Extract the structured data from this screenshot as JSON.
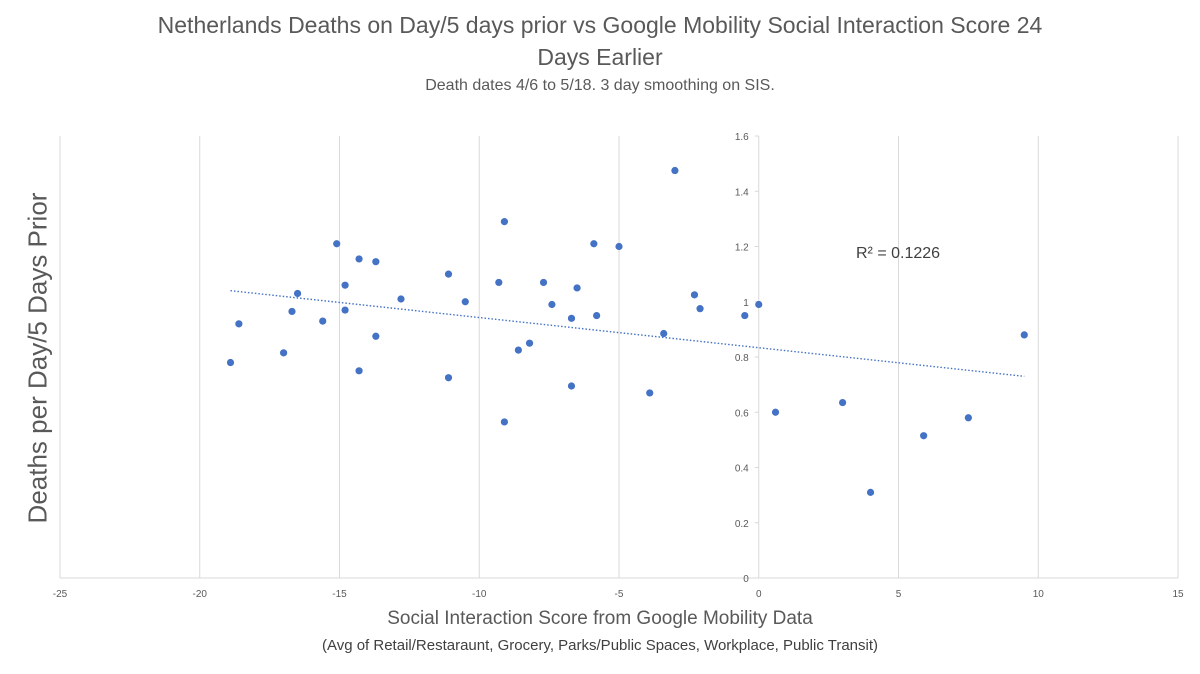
{
  "chart_data": {
    "type": "scatter",
    "title": "Netherlands Deaths on Day/5 days prior vs Google Mobility Social Interaction Score 24",
    "title_line2": "Days Earlier",
    "subtitle": "Death dates 4/6 to 5/18.  3 day smoothing on SIS.",
    "xlabel": "Social Interaction Score from Google Mobility Data",
    "xlabel_sub": "(Avg of Retail/Restaraunt, Grocery, Parks/Public Spaces, Workplace, Public Transit)",
    "ylabel": "Deaths per Day/5 Days Prior",
    "xlim": [
      -25,
      15
    ],
    "ylim": [
      0,
      1.6
    ],
    "x_ticks": [
      "-25",
      "-20",
      "-15",
      "-10",
      "-5",
      "0",
      "5",
      "10",
      "15"
    ],
    "y_ticks": [
      "0",
      "0.2",
      "0.4",
      "0.6",
      "0.8",
      "1",
      "1.2",
      "1.4",
      "1.6"
    ],
    "grid": "vertical",
    "marker_color": "#4472C4",
    "trendline": {
      "style": "dotted linear",
      "x": [
        -18.9,
        9.5
      ],
      "y": [
        1.04,
        0.73
      ],
      "label": "R² = 0.1226"
    },
    "points": [
      {
        "x": -18.9,
        "y": 0.78
      },
      {
        "x": -18.6,
        "y": 0.92
      },
      {
        "x": -17.0,
        "y": 0.815
      },
      {
        "x": -16.7,
        "y": 0.965
      },
      {
        "x": -16.5,
        "y": 1.03
      },
      {
        "x": -15.6,
        "y": 0.93
      },
      {
        "x": -15.1,
        "y": 1.21
      },
      {
        "x": -14.8,
        "y": 1.06
      },
      {
        "x": -14.8,
        "y": 0.97
      },
      {
        "x": -14.3,
        "y": 1.155
      },
      {
        "x": -14.3,
        "y": 0.75
      },
      {
        "x": -13.7,
        "y": 1.145
      },
      {
        "x": -13.7,
        "y": 0.875
      },
      {
        "x": -12.8,
        "y": 1.01
      },
      {
        "x": -11.1,
        "y": 1.1
      },
      {
        "x": -11.1,
        "y": 0.725
      },
      {
        "x": -10.5,
        "y": 1.0
      },
      {
        "x": -9.3,
        "y": 1.07
      },
      {
        "x": -9.1,
        "y": 1.29
      },
      {
        "x": -9.1,
        "y": 0.565
      },
      {
        "x": -8.6,
        "y": 0.825
      },
      {
        "x": -8.2,
        "y": 0.85
      },
      {
        "x": -7.7,
        "y": 1.07
      },
      {
        "x": -7.4,
        "y": 0.99
      },
      {
        "x": -6.7,
        "y": 0.94
      },
      {
        "x": -6.7,
        "y": 0.695
      },
      {
        "x": -6.5,
        "y": 1.05
      },
      {
        "x": -5.9,
        "y": 1.21
      },
      {
        "x": -5.8,
        "y": 0.95
      },
      {
        "x": -5.0,
        "y": 1.2
      },
      {
        "x": -3.9,
        "y": 0.67
      },
      {
        "x": -3.4,
        "y": 0.885
      },
      {
        "x": -3.0,
        "y": 1.475
      },
      {
        "x": -2.3,
        "y": 1.025
      },
      {
        "x": -2.1,
        "y": 0.975
      },
      {
        "x": -0.5,
        "y": 0.95
      },
      {
        "x": 0.0,
        "y": 0.99
      },
      {
        "x": 0.6,
        "y": 0.6
      },
      {
        "x": 3.0,
        "y": 0.635
      },
      {
        "x": 4.0,
        "y": 0.31
      },
      {
        "x": 5.9,
        "y": 0.515
      },
      {
        "x": 7.5,
        "y": 0.58
      },
      {
        "x": 9.5,
        "y": 0.88
      }
    ]
  }
}
